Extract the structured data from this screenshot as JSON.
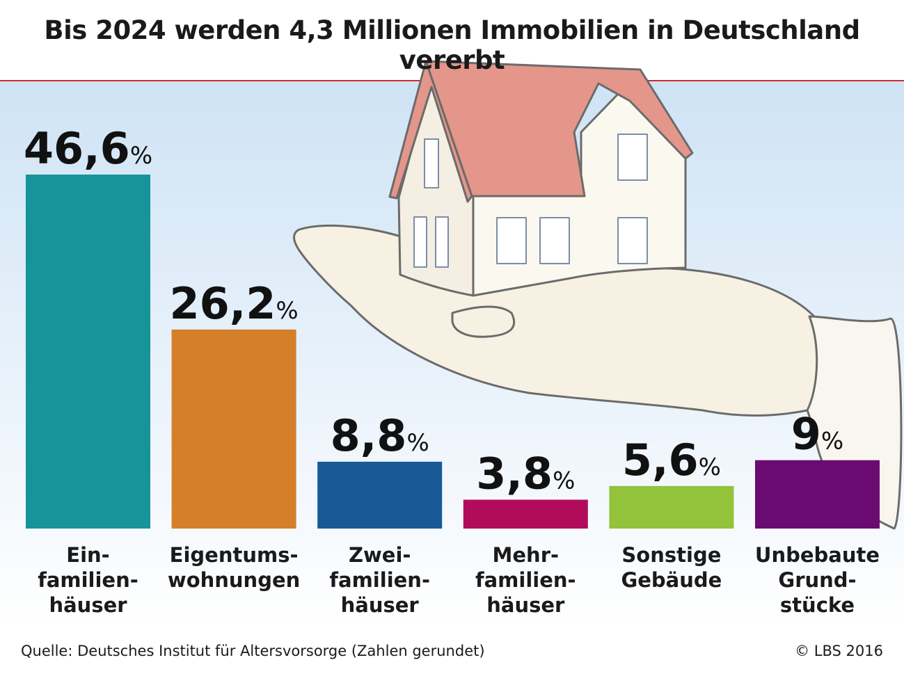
{
  "header": {
    "title": "Bis 2024 werden 4,3 Millionen Immobilien in Deutschland vererbt"
  },
  "footer": {
    "source": "Quelle: Deutsches Institut für Altersvorsorge (Zahlen gerundet)",
    "copyright": "© LBS 2016"
  },
  "chart_data": {
    "type": "bar",
    "title": "Bis 2024 werden 4,3 Millionen Immobilien in Deutschland vererbt",
    "unit": "%",
    "categories": [
      [
        "Ein-",
        "familien-",
        "häuser"
      ],
      [
        "Eigentums-",
        "wohnungen"
      ],
      [
        "Zwei-",
        "familien-",
        "häuser"
      ],
      [
        "Mehr-",
        "familien-",
        "häuser"
      ],
      [
        "Sonstige",
        "Gebäude"
      ],
      [
        "Unbebaute",
        "Grund-",
        "stücke"
      ]
    ],
    "values": [
      46.6,
      26.2,
      8.8,
      3.8,
      5.6,
      9
    ],
    "value_labels": [
      "46,6",
      "26,2",
      "8,8",
      "3,8",
      "5,6",
      "9"
    ],
    "colors": [
      "#16949a",
      "#d57f2a",
      "#175a96",
      "#b10c5c",
      "#93c23b",
      "#690b70"
    ],
    "grid": false,
    "legend": "none"
  }
}
